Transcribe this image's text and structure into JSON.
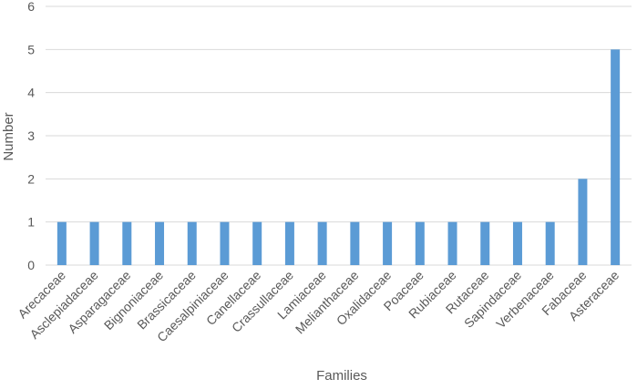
{
  "chart_data": {
    "type": "bar",
    "title": "",
    "xlabel": "Families",
    "ylabel": "Number",
    "ylim": [
      0,
      6
    ],
    "yticks": [
      "0",
      "1",
      "2",
      "3",
      "4",
      "5",
      "6"
    ],
    "grid": true,
    "legend": "none",
    "bar_color": "#5b9bd5",
    "categories": [
      "Arecaceae",
      "Asclepiadaceae",
      "Asparagaceae",
      "Bignoniaceae",
      "Brassicaceae",
      "Caesalpiniaceae",
      "Canellaceae",
      "Crassullaceae",
      "Lamiaceae",
      "Melianthaceae",
      "Oxalidaceae",
      "Poaceae",
      "Rubiaceae",
      "Rutaceae",
      "Sapindaceae",
      "Verbenaceae",
      "Fabaceae",
      "Asteraceae"
    ],
    "values": [
      1,
      1,
      1,
      1,
      1,
      1,
      1,
      1,
      1,
      1,
      1,
      1,
      1,
      1,
      1,
      1,
      2,
      5
    ]
  }
}
